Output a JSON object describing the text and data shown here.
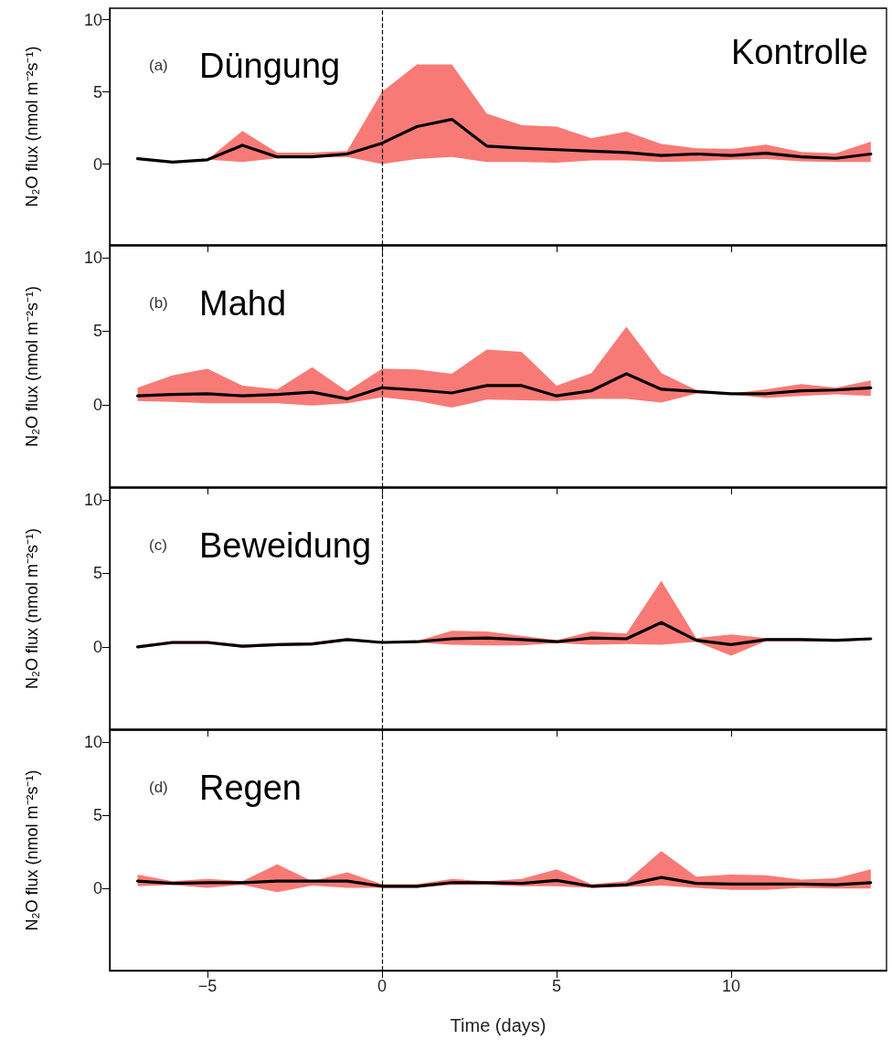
{
  "chart_data": [
    {
      "type": "line",
      "title": "Düngung",
      "annotations": [
        "(a)",
        "Kontrolle"
      ],
      "ylabel": "N₂O flux (nmol m⁻²s⁻¹)",
      "x": [
        -7,
        -6,
        -5,
        -4,
        -3,
        -2,
        -1,
        0,
        1,
        2,
        3,
        4,
        5,
        6,
        7,
        8,
        9,
        10,
        11,
        12,
        13,
        14
      ],
      "series": [
        {
          "color": "#000000",
          "values": [
            0.38,
            0.14,
            0.3,
            1.3,
            0.5,
            0.5,
            0.7,
            1.45,
            2.6,
            3.1,
            1.25,
            1.1,
            1.0,
            0.9,
            0.8,
            0.6,
            0.7,
            0.6,
            0.75,
            0.5,
            0.4,
            0.7
          ],
          "upper": [
            0.38,
            0.14,
            0.3,
            2.3,
            0.8,
            0.8,
            0.9,
            5.0,
            6.9,
            6.9,
            3.5,
            2.7,
            2.6,
            1.8,
            2.25,
            1.4,
            1.1,
            1.05,
            1.35,
            0.85,
            0.75,
            1.55
          ],
          "lower": [
            0.38,
            0.14,
            0.3,
            0.15,
            0.4,
            0.45,
            0.5,
            0.0,
            0.35,
            0.5,
            0.15,
            0.15,
            0.1,
            0.25,
            0.25,
            0.15,
            0.2,
            0.3,
            0.35,
            0.2,
            0.15,
            0.15
          ]
        }
      ],
      "xlim": [
        -7.8,
        14.45
      ],
      "xticks": [
        -5,
        0,
        5,
        10
      ],
      "ylim": [
        -5.6,
        10.8
      ],
      "yticks": [
        0,
        5,
        10
      ],
      "tick_labels": "y",
      "grid": false,
      "marker": "none",
      "line_style": "solid",
      "ref_lines": [
        {
          "axis": "x",
          "value": 0,
          "line_style": "dashed",
          "color": "#000000"
        }
      ]
    },
    {
      "type": "line",
      "title": "Mahd",
      "annotations": [
        "(b)"
      ],
      "ylabel": "N₂O flux (nmol m⁻²s⁻¹)",
      "x": [
        -7,
        -6,
        -5,
        -4,
        -3,
        -2,
        -1,
        0,
        1,
        2,
        3,
        4,
        5,
        6,
        7,
        8,
        9,
        10,
        11,
        12,
        13,
        14
      ],
      "series": [
        {
          "color": "#000000",
          "values": [
            0.6,
            0.7,
            0.75,
            0.6,
            0.7,
            0.85,
            0.4,
            1.15,
            1.0,
            0.8,
            1.3,
            1.3,
            0.6,
            0.95,
            2.1,
            1.05,
            0.9,
            0.75,
            0.75,
            0.95,
            1.0,
            1.15
          ],
          "upper": [
            1.15,
            2.0,
            2.45,
            1.3,
            1.05,
            2.55,
            0.9,
            2.45,
            2.4,
            2.1,
            3.75,
            3.6,
            1.3,
            2.15,
            5.3,
            2.15,
            1.0,
            0.75,
            1.05,
            1.4,
            1.15,
            1.65
          ],
          "lower": [
            0.25,
            0.2,
            0.1,
            0.1,
            0.1,
            -0.05,
            0.1,
            0.5,
            0.25,
            -0.2,
            0.35,
            0.3,
            0.25,
            0.4,
            0.4,
            0.15,
            0.75,
            0.7,
            0.45,
            0.6,
            0.7,
            0.6
          ]
        }
      ],
      "xlim": [
        -7.8,
        14.45
      ],
      "xticks": [
        -5,
        0,
        5,
        10
      ],
      "ylim": [
        -5.6,
        10.8
      ],
      "yticks": [
        0,
        5,
        10
      ],
      "tick_labels": "y",
      "grid": false,
      "marker": "none",
      "line_style": "solid",
      "ref_lines": [
        {
          "axis": "x",
          "value": 0,
          "line_style": "dashed",
          "color": "#000000"
        }
      ]
    },
    {
      "type": "line",
      "title": "Beweidung",
      "annotations": [
        "(c)"
      ],
      "ylabel": "N₂O flux (nmol m⁻²s⁻¹)",
      "x": [
        -7,
        -6,
        -5,
        -4,
        -3,
        -2,
        -1,
        0,
        1,
        2,
        3,
        4,
        5,
        6,
        7,
        8,
        9,
        10,
        11,
        12,
        13,
        14
      ],
      "series": [
        {
          "color": "#000000",
          "values": [
            0.0,
            0.3,
            0.3,
            0.05,
            0.15,
            0.2,
            0.5,
            0.3,
            0.35,
            0.55,
            0.6,
            0.5,
            0.35,
            0.6,
            0.55,
            1.65,
            0.45,
            0.15,
            0.5,
            0.5,
            0.45,
            0.55
          ],
          "upper": [
            0.1,
            0.4,
            0.4,
            0.15,
            0.25,
            0.3,
            0.6,
            0.35,
            0.4,
            1.1,
            1.05,
            0.75,
            0.45,
            1.05,
            0.9,
            4.5,
            0.6,
            0.85,
            0.6,
            0.6,
            0.5,
            0.6
          ],
          "lower": [
            -0.1,
            0.2,
            0.2,
            -0.05,
            0.05,
            0.1,
            0.4,
            0.25,
            0.3,
            0.15,
            0.1,
            0.1,
            0.25,
            0.15,
            0.2,
            0.15,
            0.35,
            -0.6,
            0.4,
            0.4,
            0.35,
            0.45
          ]
        }
      ],
      "xlim": [
        -7.8,
        14.45
      ],
      "xticks": [
        -5,
        0,
        5,
        10
      ],
      "ylim": [
        -5.6,
        10.8
      ],
      "yticks": [
        0,
        5,
        10
      ],
      "tick_labels": "y",
      "grid": false,
      "marker": "none",
      "line_style": "solid",
      "ref_lines": [
        {
          "axis": "x",
          "value": 0,
          "line_style": "dashed",
          "color": "#000000"
        }
      ]
    },
    {
      "type": "line",
      "title": "Regen",
      "annotations": [
        "(d)"
      ],
      "ylabel": "N₂O flux (nmol m⁻²s⁻¹)",
      "xlabel": "Time (days)",
      "x": [
        -7,
        -6,
        -5,
        -4,
        -3,
        -2,
        -1,
        0,
        1,
        2,
        3,
        4,
        5,
        6,
        7,
        8,
        9,
        10,
        11,
        12,
        13,
        14
      ],
      "series": [
        {
          "color": "#000000",
          "values": [
            0.5,
            0.35,
            0.4,
            0.4,
            0.5,
            0.5,
            0.5,
            0.15,
            0.15,
            0.4,
            0.4,
            0.35,
            0.55,
            0.15,
            0.25,
            0.75,
            0.35,
            0.3,
            0.3,
            0.3,
            0.25,
            0.4
          ],
          "upper": [
            0.95,
            0.5,
            0.65,
            0.5,
            1.65,
            0.5,
            1.1,
            0.3,
            0.3,
            0.65,
            0.5,
            0.65,
            1.3,
            0.3,
            0.5,
            2.55,
            0.8,
            0.95,
            0.9,
            0.6,
            0.7,
            1.3
          ],
          "lower": [
            0.15,
            0.25,
            0.05,
            0.25,
            -0.25,
            0.2,
            0.05,
            0.05,
            0.05,
            0.25,
            0.25,
            0.15,
            0.15,
            0.05,
            0.1,
            0.2,
            0.05,
            -0.1,
            -0.1,
            0.05,
            0.0,
            0.0
          ]
        }
      ],
      "xlim": [
        -7.8,
        14.45
      ],
      "xticks": [
        -5,
        0,
        5,
        10
      ],
      "ylim": [
        -5.6,
        10.8
      ],
      "yticks": [
        0,
        5,
        10
      ],
      "grid": false,
      "marker": "none",
      "line_style": "solid",
      "ref_lines": [
        {
          "axis": "x",
          "value": 0,
          "line_style": "dashed",
          "color": "#000000"
        }
      ]
    }
  ]
}
